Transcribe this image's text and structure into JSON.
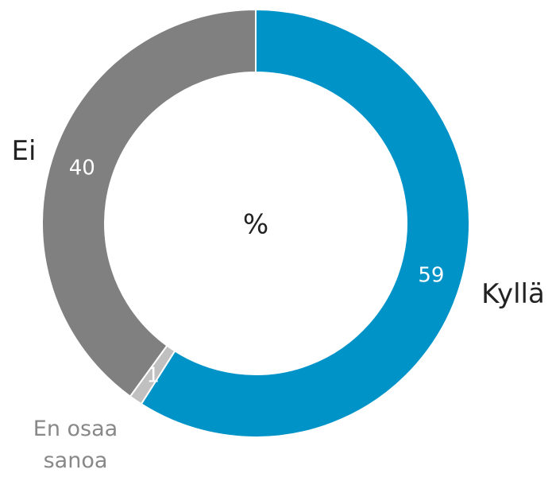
{
  "chart_data": {
    "type": "donut",
    "center_label": "%",
    "categories": [
      "Kyllä",
      "En osaa sanoa",
      "Ei"
    ],
    "values": [
      59,
      1,
      40
    ],
    "colors": [
      "#0093c8",
      "#c0c0c0",
      "#808080"
    ]
  }
}
